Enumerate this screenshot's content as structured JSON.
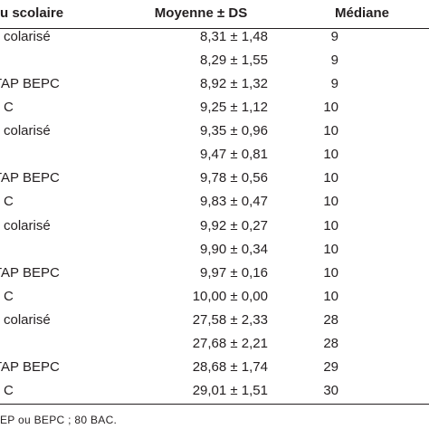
{
  "table": {
    "header": [
      "u scolaire",
      "Moyenne ± DS",
      "Médiane"
    ],
    "rows": [
      [
        "colarisé",
        "8,31 ± 1,48",
        "9"
      ],
      [
        null,
        "8,29 ± 1,55",
        "9"
      ],
      [
        "TAP BEPC",
        "8,92 ± 1,32",
        "9"
      ],
      [
        "C",
        "9,25 ± 1,12",
        "10"
      ],
      [
        "colarisé",
        "9,35 ± 0,96",
        "10"
      ],
      [
        null,
        "9,47 ± 0,81",
        "10"
      ],
      [
        "TAP BEPC",
        "9,78 ± 0,56",
        "10"
      ],
      [
        "C",
        "9,83 ± 0,47",
        "10"
      ],
      [
        "colarisé",
        "9,92 ± 0,27",
        "10"
      ],
      [
        null,
        "9,90 ± 0,34",
        "10"
      ],
      [
        "TAP BEPC",
        "9,97 ± 0,16",
        "10"
      ],
      [
        "C",
        "10,00 ± 0,00",
        "10"
      ],
      [
        "colarisé",
        "27,58 ± 2,33",
        "28"
      ],
      [
        null,
        "27,68 ± 2,21",
        "28"
      ],
      [
        "TAP BEPC",
        "28,68 ± 1,74",
        "29"
      ],
      [
        "C",
        "29,01 ± 1,51",
        "30"
      ]
    ],
    "footnote": "EP ou BEPC ; 80 BAC."
  }
}
